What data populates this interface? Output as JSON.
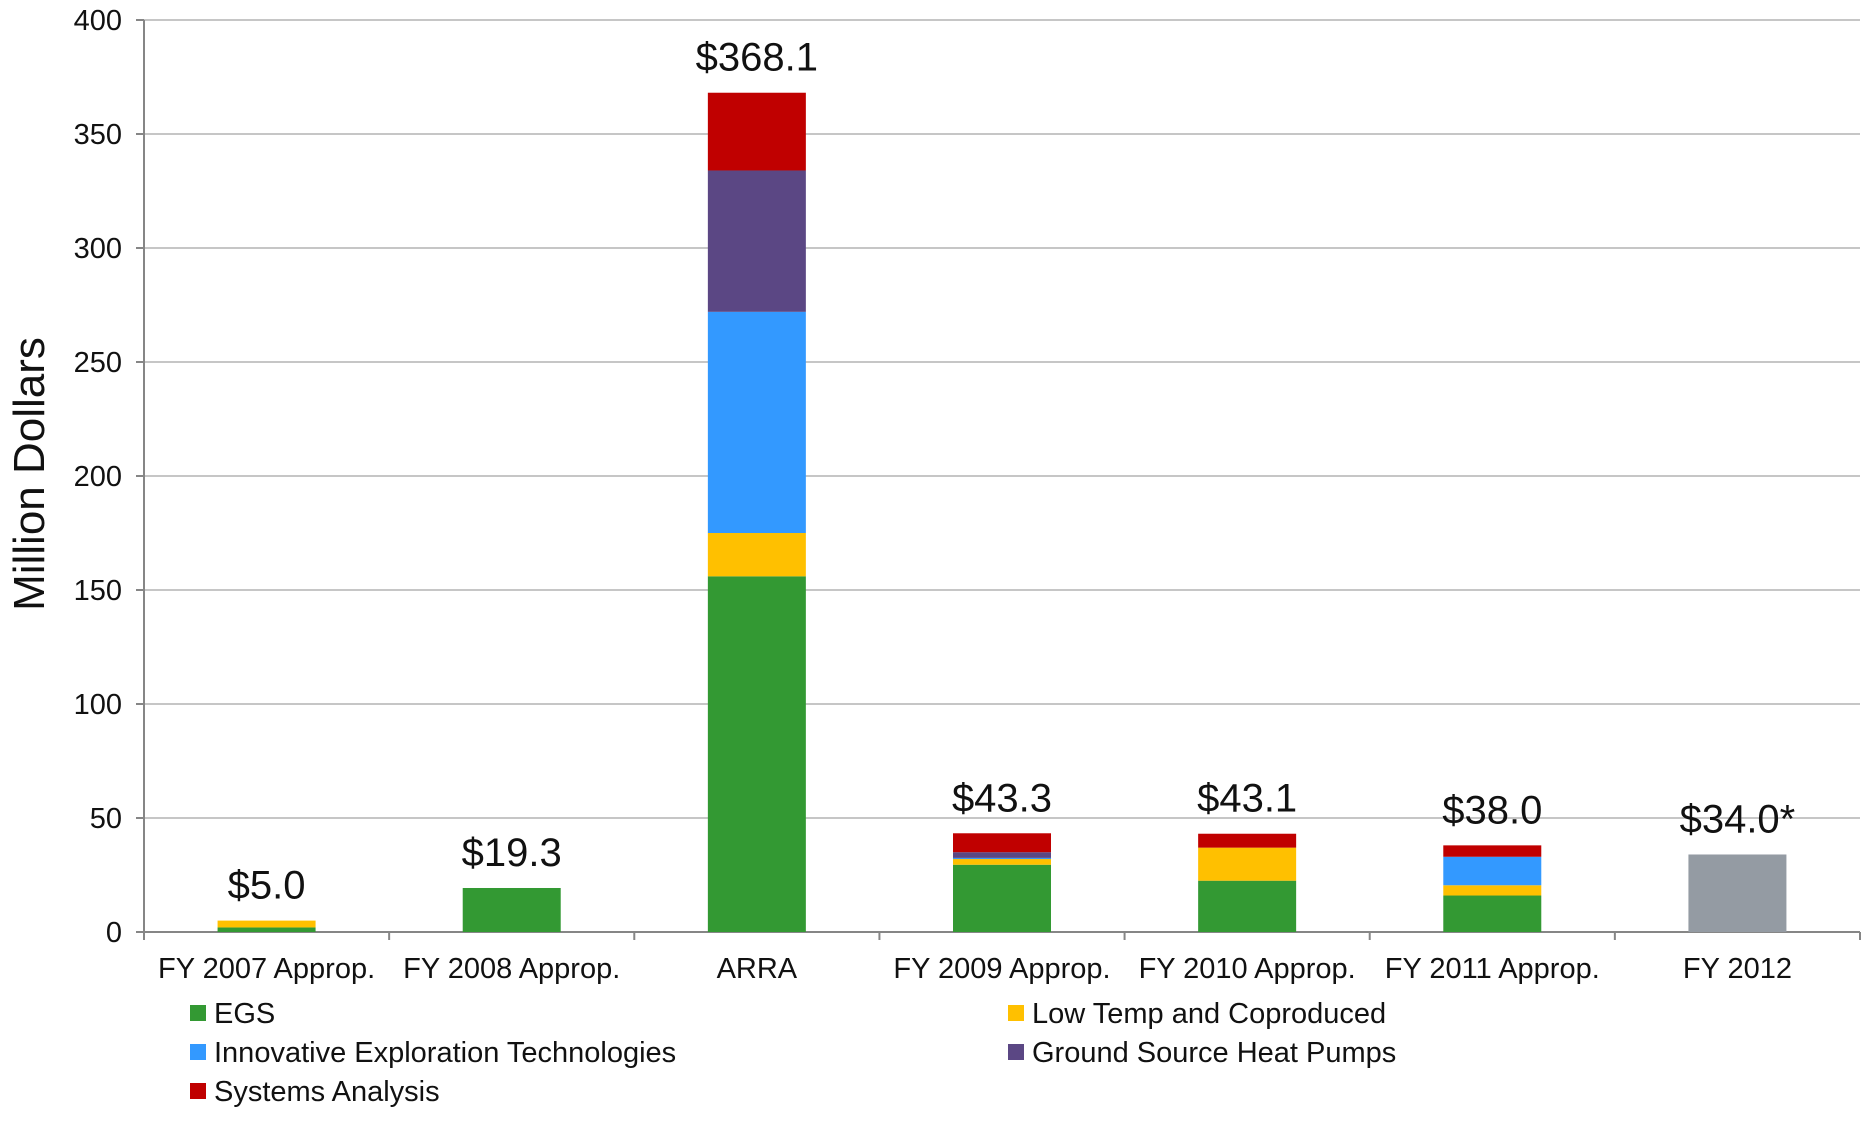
{
  "chart_data": {
    "type": "bar",
    "stacked": true,
    "ylabel": "Million Dollars",
    "xlabel": "",
    "ylim": [
      0,
      400
    ],
    "yticks": [
      0,
      50,
      100,
      150,
      200,
      250,
      300,
      350,
      400
    ],
    "grid": true,
    "legend_position": "bottom",
    "categories": [
      "FY 2007 Approp.",
      "FY 2008 Approp.",
      "ARRA",
      "FY 2009 Approp.",
      "FY 2010 Approp.",
      "FY 2011 Approp.",
      "FY 2012"
    ],
    "totals": [
      "$5.0",
      "$19.3",
      "$368.1",
      "$43.3",
      "$43.1",
      "$38.0",
      "$34.0*"
    ],
    "series": [
      {
        "name": "EGS",
        "color": "#339933",
        "values": [
          2.0,
          19.3,
          156.0,
          29.5,
          22.5,
          16.0,
          0
        ]
      },
      {
        "name": "Low Temp and Coproduced",
        "color": "#ffc000",
        "values": [
          3.0,
          0,
          19.0,
          2.5,
          14.5,
          4.5,
          0
        ]
      },
      {
        "name": "Innovative Exploration Technologies",
        "color": "#3399ff",
        "values": [
          0,
          0,
          97.0,
          0.5,
          0,
          12.5,
          0
        ]
      },
      {
        "name": "Ground Source Heat Pumps",
        "color": "#5b4784",
        "values": [
          0,
          0,
          62.0,
          2.5,
          0,
          0,
          0
        ]
      },
      {
        "name": "Systems Analysis",
        "color": "#c00000",
        "values": [
          0,
          0,
          34.1,
          8.3,
          6.1,
          5.0,
          0
        ]
      },
      {
        "color": "#949ba3",
        "values": [
          0,
          0,
          0,
          0,
          0,
          0,
          34.0
        ]
      }
    ],
    "legend": [
      {
        "label": "EGS",
        "color": "#339933"
      },
      {
        "label": "Low Temp and Coproduced",
        "color": "#ffc000"
      },
      {
        "label": "Innovative Exploration Technologies",
        "color": "#3399ff"
      },
      {
        "label": "Ground Source Heat Pumps",
        "color": "#5b4784"
      },
      {
        "label": "Systems Analysis",
        "color": "#c00000"
      }
    ]
  }
}
